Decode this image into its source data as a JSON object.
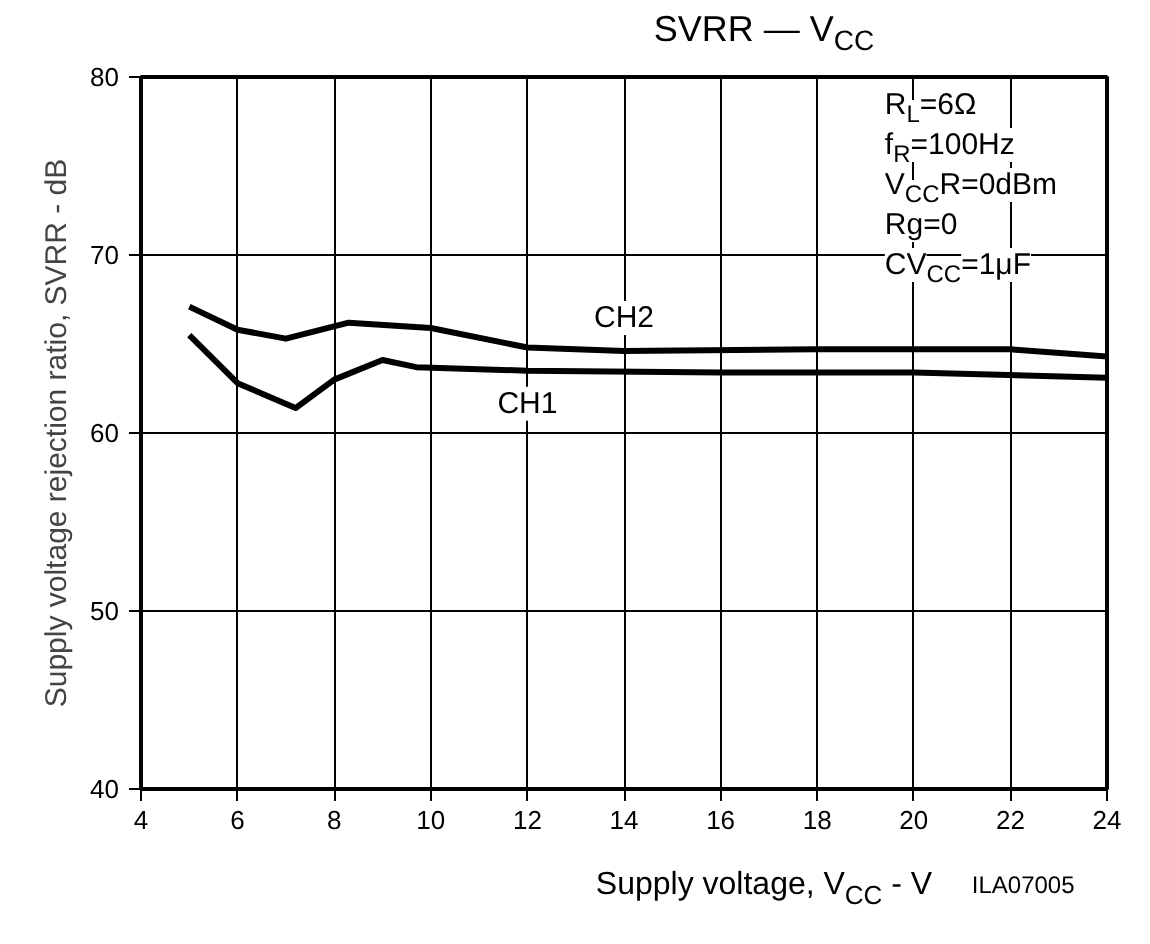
{
  "chart_data": {
    "type": "line",
    "title": "SVRR — V$_{CC}$",
    "xlabel": "Supply voltage, V$_{CC}$ - V",
    "ylabel": "Supply voltage rejection ratio, SVRR - dB",
    "xlim": [
      4,
      24
    ],
    "ylim": [
      40,
      80
    ],
    "xticks": [
      4,
      6,
      8,
      10,
      12,
      14,
      16,
      18,
      20,
      22,
      24
    ],
    "yticks": [
      40,
      50,
      60,
      70,
      80
    ],
    "grid": true,
    "marker": "none",
    "line_style": "solid",
    "series": [
      {
        "name": "CH1",
        "color": "#000000",
        "x": [
          5,
          6,
          7.2,
          8,
          9,
          9.7,
          12,
          16,
          20,
          24
        ],
        "values": [
          65.5,
          62.8,
          61.4,
          63.0,
          64.1,
          63.7,
          63.5,
          63.4,
          63.4,
          63.1
        ]
      },
      {
        "name": "CH2",
        "color": "#000000",
        "x": [
          5,
          6,
          7,
          8.3,
          10,
          12,
          14,
          18,
          22,
          24
        ],
        "values": [
          67.1,
          65.8,
          65.3,
          66.2,
          65.9,
          64.8,
          64.6,
          64.7,
          64.7,
          64.3
        ]
      }
    ],
    "annotations": [
      "R$_{L}$=6Ω",
      "f$_{R}$=100Hz",
      "V$_{CC}$R=0dBm",
      "Rg=0",
      "CV$_{CC}$=1μF",
      "ILA07005"
    ]
  }
}
